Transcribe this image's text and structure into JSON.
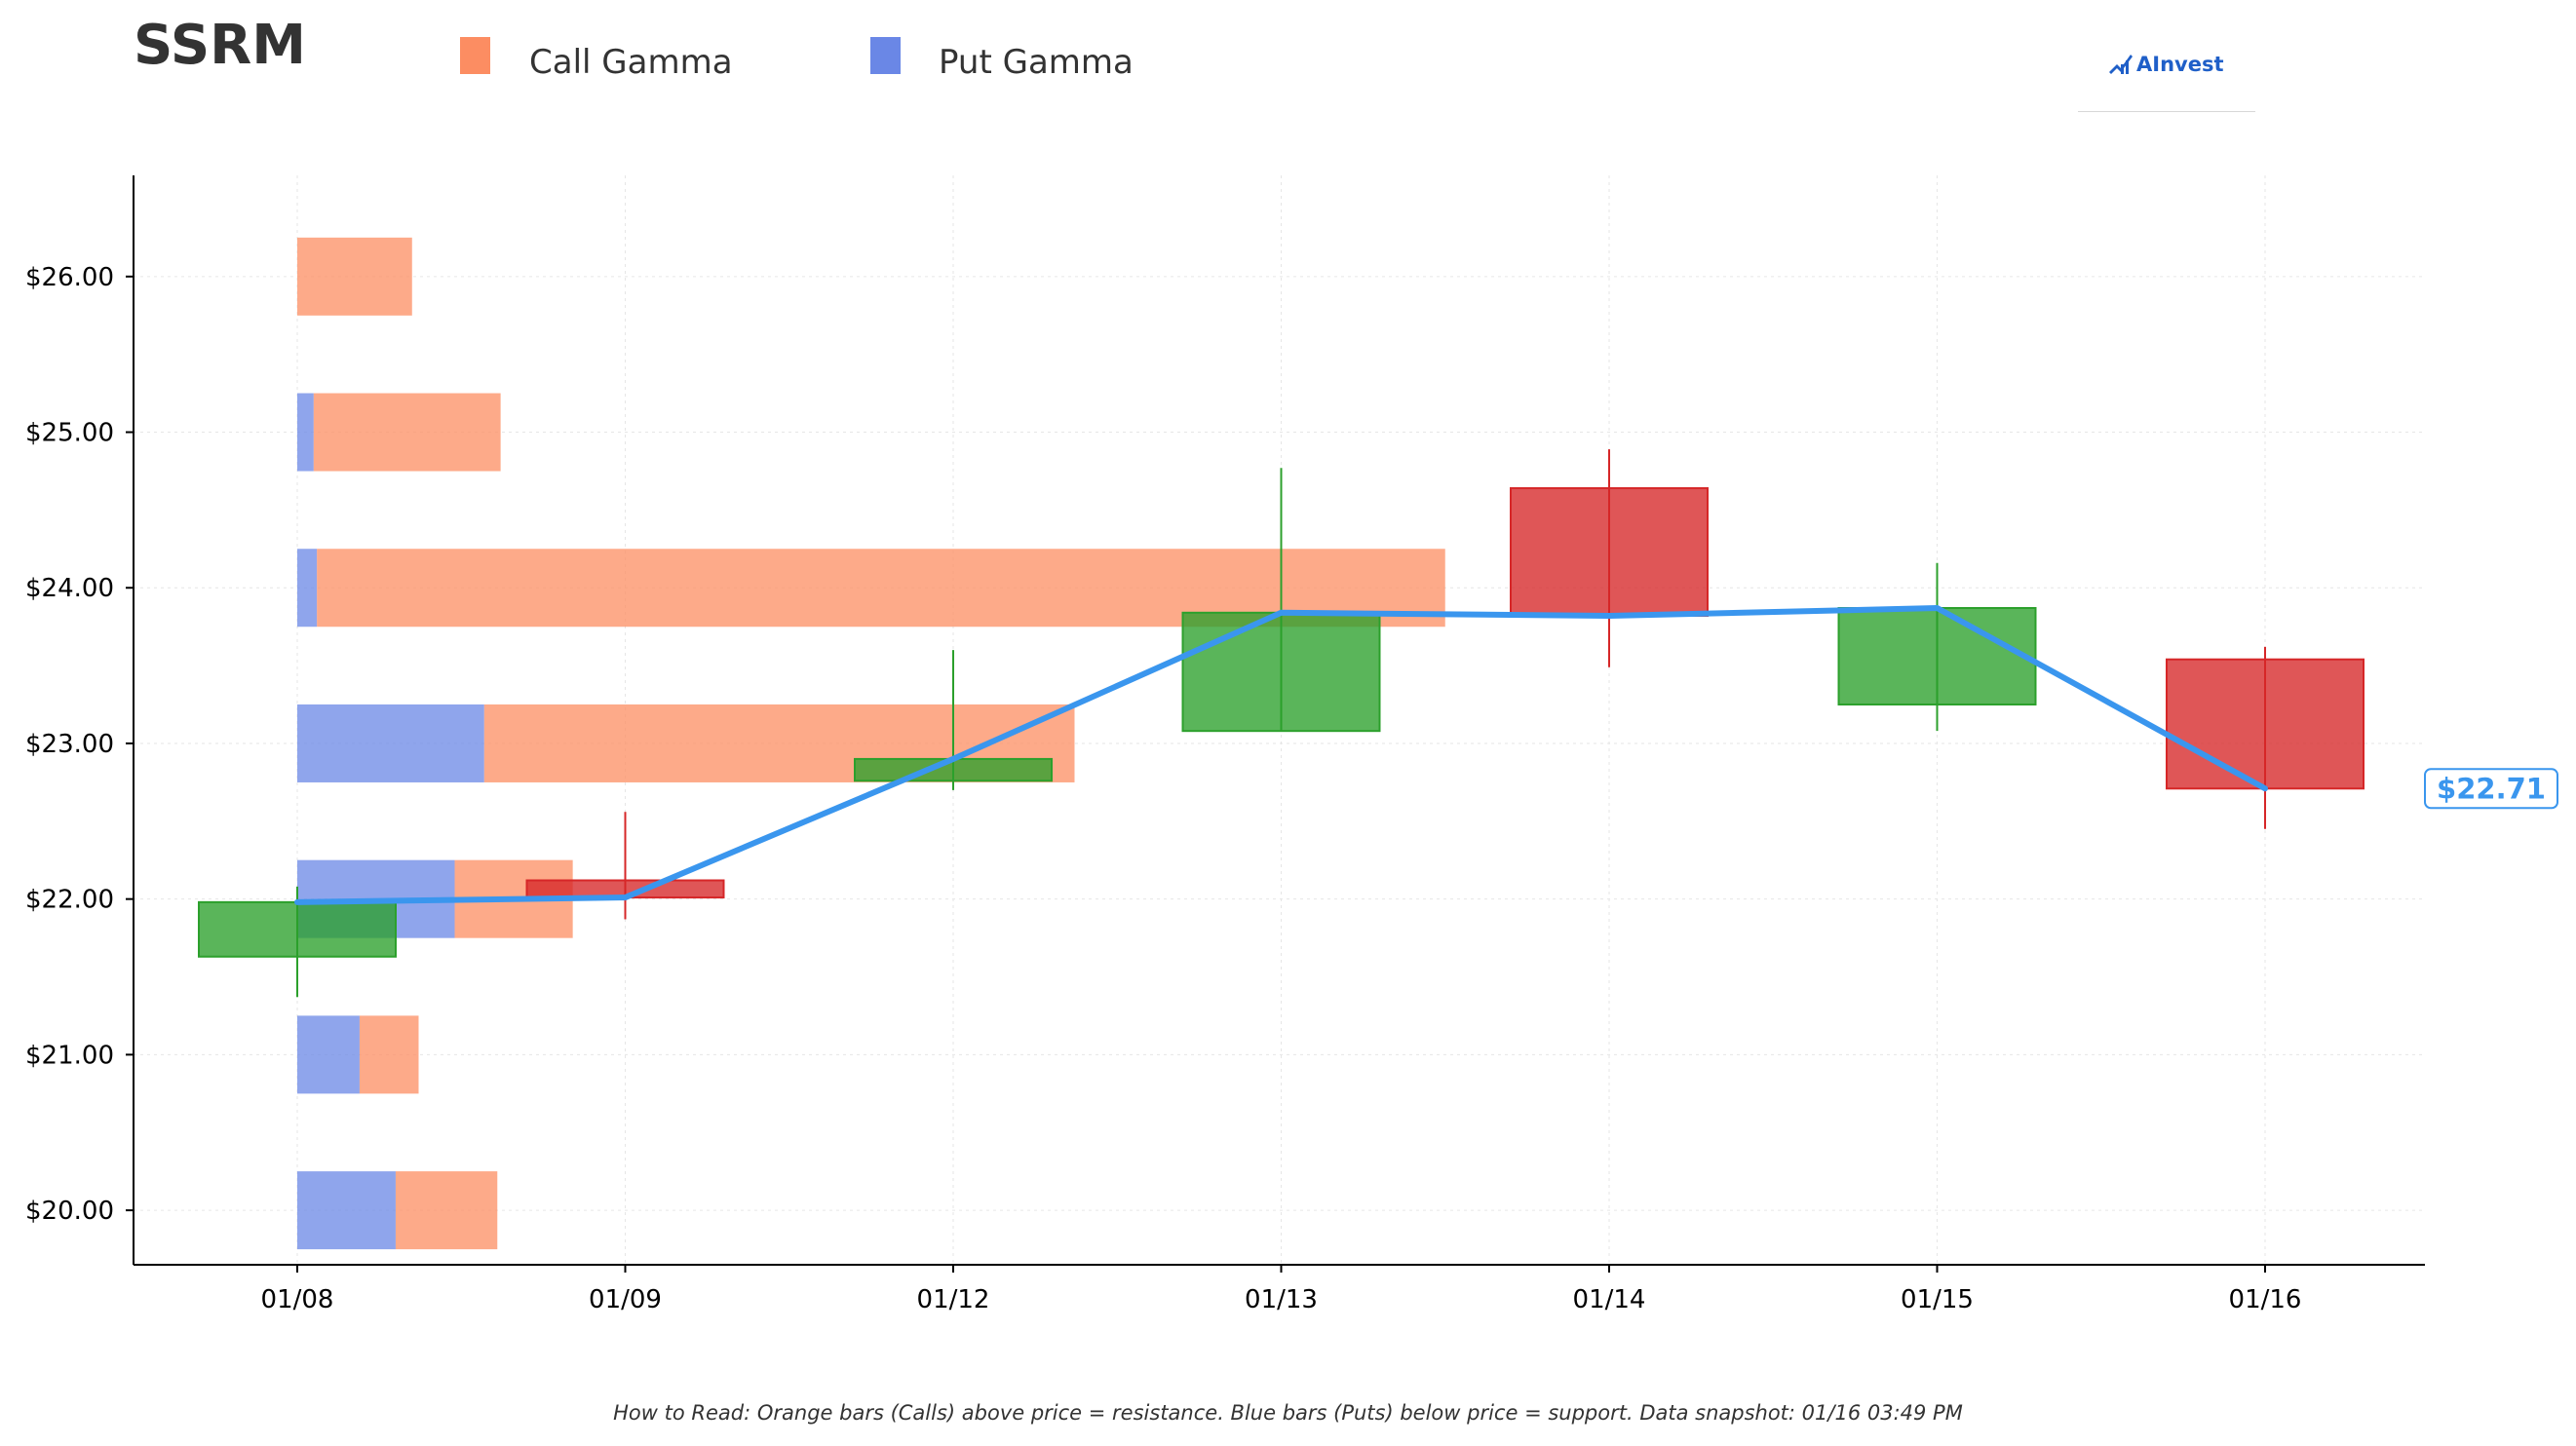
{
  "header": {
    "ticker": "SSRM",
    "legend": [
      {
        "label": "Call Gamma",
        "color": "#fc8d62"
      },
      {
        "label": "Put Gamma",
        "color": "#6a87e6"
      }
    ],
    "logo_text": "AInvest"
  },
  "footnote": "How to Read: Orange bars (Calls) above price = resistance. Blue bars (Puts) below price = support. Data snapshot: 01/16 03:49 PM",
  "chart_data": {
    "type": "candlestick",
    "categories": [
      "01/08",
      "01/09",
      "01/12",
      "01/13",
      "01/14",
      "01/15",
      "01/16"
    ],
    "y_ticks": [
      "$20.00",
      "$21.00",
      "$22.00",
      "$23.00",
      "$24.00",
      "$25.00",
      "$26.00"
    ],
    "y_tick_values": [
      20,
      21,
      22,
      23,
      24,
      25,
      26
    ],
    "ylim": [
      19.65,
      26.65
    ],
    "grid": true,
    "colors": {
      "up": "#2ca02c",
      "down": "#d62728",
      "close_line": "#3a96ee",
      "call": "#fc8d62",
      "put": "#6a87e6"
    },
    "candles": [
      {
        "date": "01/08",
        "open": 21.63,
        "high": 22.08,
        "low": 21.37,
        "close": 21.98
      },
      {
        "date": "01/09",
        "open": 22.12,
        "high": 22.56,
        "low": 21.87,
        "close": 22.01
      },
      {
        "date": "01/12",
        "open": 22.76,
        "high": 23.6,
        "low": 22.7,
        "close": 22.9
      },
      {
        "date": "01/13",
        "open": 23.08,
        "high": 24.77,
        "low": 23.08,
        "close": 23.84
      },
      {
        "date": "01/14",
        "open": 24.64,
        "high": 24.89,
        "low": 23.49,
        "close": 23.82
      },
      {
        "date": "01/15",
        "open": 23.25,
        "high": 24.16,
        "low": 23.08,
        "close": 23.87
      },
      {
        "date": "01/16",
        "open": 23.54,
        "high": 23.62,
        "low": 22.45,
        "close": 22.71
      }
    ],
    "gamma": {
      "unit": "category-widths",
      "levels": [
        {
          "strike": 20,
          "put": 0.3,
          "call": 0.31
        },
        {
          "strike": 21,
          "put": 0.19,
          "call": 0.18
        },
        {
          "strike": 22,
          "put": 0.48,
          "call": 0.36
        },
        {
          "strike": 23,
          "put": 0.57,
          "call": 1.8
        },
        {
          "strike": 24,
          "put": 0.06,
          "call": 3.44
        },
        {
          "strike": 25,
          "put": 0.05,
          "call": 0.57
        },
        {
          "strike": 26,
          "put": 0.0,
          "call": 0.35
        }
      ]
    },
    "last_price_label": "$22.71"
  }
}
